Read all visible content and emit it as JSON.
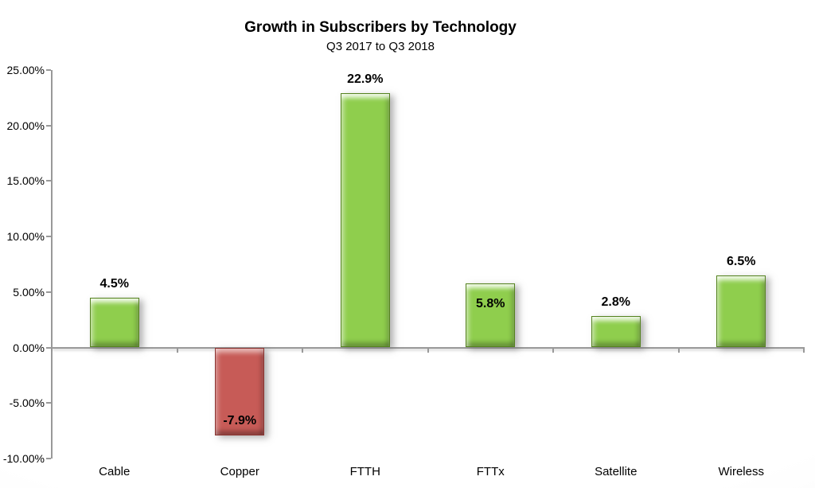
{
  "header": {
    "title": "Growth in Subscribers by Technology",
    "subtitle": "Q3 2017 to Q3 2018"
  },
  "chart_data": {
    "type": "bar",
    "title": "Growth in Subscribers by Technology",
    "subtitle": "Q3 2017 to Q3 2018",
    "categories": [
      "Cable",
      "Copper",
      "FTTH",
      "FTTx",
      "Satellite",
      "Wireless"
    ],
    "values": [
      4.5,
      -7.9,
      22.9,
      5.8,
      2.8,
      6.5
    ],
    "value_labels": [
      "4.5%",
      "-7.9%",
      "22.9%",
      "5.8%",
      "2.8%",
      "6.5%"
    ],
    "label_placements": [
      "outside-end",
      "inside-bottom",
      "outside-end",
      "inside-top",
      "outside-end",
      "outside-end"
    ],
    "xlabel": "",
    "ylabel": "",
    "ylim": [
      -10,
      25
    ],
    "ytick_step": 5,
    "yticks": [
      {
        "value": 25,
        "label": "25.00%"
      },
      {
        "value": 20,
        "label": "20.00%"
      },
      {
        "value": 15,
        "label": "15.00%"
      },
      {
        "value": 10,
        "label": "10.00%"
      },
      {
        "value": 5,
        "label": "5.00%"
      },
      {
        "value": 0,
        "label": "0.00%"
      },
      {
        "value": -5,
        "label": "-5.00%"
      },
      {
        "value": -10,
        "label": "-10.00%"
      }
    ],
    "grid": false,
    "legend": null
  },
  "colors": {
    "bar_positive": "#8FCE4D",
    "bar_positive_border": "#55831F",
    "bar_negative": "#C75B57",
    "bar_negative_border": "#8B3431",
    "axis": "#999999",
    "text": "#000000"
  }
}
